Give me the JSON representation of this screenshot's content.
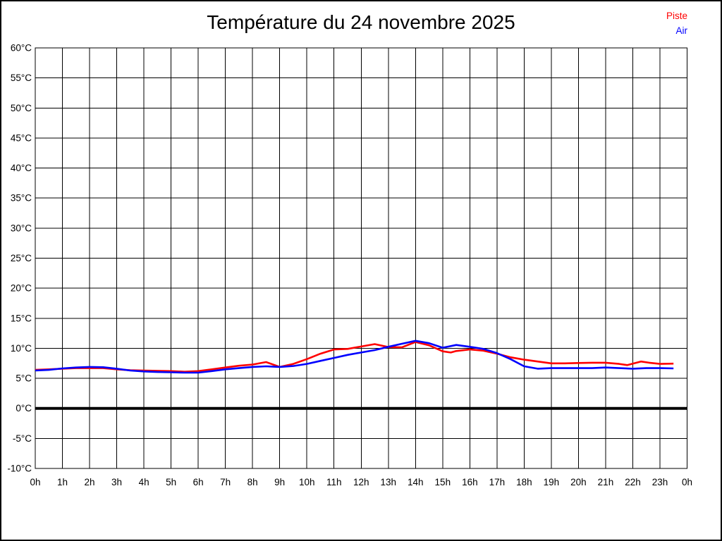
{
  "title": "Température du 24 novembre 2025",
  "legend": {
    "position": "top-right",
    "items": [
      {
        "label": "Piste",
        "color": "#ff0000"
      },
      {
        "label": "Air",
        "color": "#0000ff"
      }
    ]
  },
  "chart_data": {
    "type": "line",
    "title": "Température du 24 novembre 2025",
    "xlabel": "",
    "ylabel": "",
    "x_unit": "hour",
    "y_unit": "°C",
    "x_range_hours": [
      0,
      24
    ],
    "y_range_celsius": [
      -10,
      60
    ],
    "y_step": 5,
    "grid": true,
    "grid_color": "#000000",
    "frame_color": "#000000",
    "background_color": "#ffffff",
    "zero_line": {
      "value": 0,
      "color": "#000000",
      "thick": true
    },
    "x_tick_labels": [
      "0h",
      "1h",
      "2h",
      "3h",
      "4h",
      "5h",
      "6h",
      "7h",
      "8h",
      "9h",
      "10h",
      "11h",
      "12h",
      "13h",
      "14h",
      "15h",
      "16h",
      "17h",
      "18h",
      "19h",
      "20h",
      "21h",
      "22h",
      "23h",
      "0h"
    ],
    "y_tick_labels": [
      "60°C",
      "55°C",
      "50°C",
      "45°C",
      "40°C",
      "35°C",
      "30°C",
      "25°C",
      "20°C",
      "15°C",
      "10°C",
      "5°C",
      "0°C",
      "-5°C",
      "-10°C"
    ],
    "series": [
      {
        "name": "Piste",
        "color": "#ff0000",
        "points": [
          [
            0,
            6.4
          ],
          [
            0.5,
            6.5
          ],
          [
            1,
            6.6
          ],
          [
            1.5,
            6.7
          ],
          [
            2,
            6.7
          ],
          [
            2.5,
            6.7
          ],
          [
            3,
            6.5
          ],
          [
            3.5,
            6.35
          ],
          [
            4,
            6.3
          ],
          [
            4.5,
            6.25
          ],
          [
            5,
            6.2
          ],
          [
            5.5,
            6.1
          ],
          [
            6,
            6.2
          ],
          [
            6.5,
            6.5
          ],
          [
            7,
            6.8
          ],
          [
            7.5,
            7.1
          ],
          [
            8,
            7.3
          ],
          [
            8.5,
            7.7
          ],
          [
            9,
            6.9
          ],
          [
            9.5,
            7.4
          ],
          [
            10,
            8.2
          ],
          [
            10.5,
            9.1
          ],
          [
            11,
            9.8
          ],
          [
            11.5,
            9.9
          ],
          [
            12,
            10.3
          ],
          [
            12.5,
            10.7
          ],
          [
            13,
            10.2
          ],
          [
            13.5,
            10.15
          ],
          [
            14,
            11.05
          ],
          [
            14.5,
            10.5
          ],
          [
            15,
            9.5
          ],
          [
            15.3,
            9.3
          ],
          [
            15.5,
            9.55
          ],
          [
            16,
            9.8
          ],
          [
            16.5,
            9.6
          ],
          [
            17,
            9.1
          ],
          [
            17.5,
            8.5
          ],
          [
            18,
            8.1
          ],
          [
            18.5,
            7.8
          ],
          [
            19,
            7.5
          ],
          [
            19.5,
            7.5
          ],
          [
            20,
            7.55
          ],
          [
            20.5,
            7.6
          ],
          [
            21,
            7.6
          ],
          [
            21.5,
            7.4
          ],
          [
            21.8,
            7.2
          ],
          [
            22.3,
            7.8
          ],
          [
            22.6,
            7.6
          ],
          [
            23,
            7.4
          ],
          [
            23.5,
            7.45
          ]
        ]
      },
      {
        "name": "Air",
        "color": "#0000ff",
        "points": [
          [
            0,
            6.3
          ],
          [
            0.5,
            6.4
          ],
          [
            1,
            6.65
          ],
          [
            1.5,
            6.8
          ],
          [
            2,
            6.9
          ],
          [
            2.5,
            6.85
          ],
          [
            3,
            6.6
          ],
          [
            3.5,
            6.3
          ],
          [
            4,
            6.15
          ],
          [
            4.5,
            6.05
          ],
          [
            5,
            6.0
          ],
          [
            5.5,
            5.95
          ],
          [
            6,
            5.95
          ],
          [
            6.5,
            6.2
          ],
          [
            7,
            6.5
          ],
          [
            7.5,
            6.7
          ],
          [
            8,
            6.9
          ],
          [
            8.5,
            7.0
          ],
          [
            9,
            6.9
          ],
          [
            9.5,
            7.05
          ],
          [
            10,
            7.4
          ],
          [
            10.5,
            7.9
          ],
          [
            11,
            8.4
          ],
          [
            11.5,
            8.9
          ],
          [
            12,
            9.3
          ],
          [
            12.5,
            9.7
          ],
          [
            13,
            10.25
          ],
          [
            13.5,
            10.75
          ],
          [
            14,
            11.25
          ],
          [
            14.5,
            10.85
          ],
          [
            15,
            10.1
          ],
          [
            15.5,
            10.55
          ],
          [
            16,
            10.25
          ],
          [
            16.5,
            9.9
          ],
          [
            17,
            9.2
          ],
          [
            17.5,
            8.2
          ],
          [
            18,
            7.0
          ],
          [
            18.5,
            6.6
          ],
          [
            19,
            6.7
          ],
          [
            19.5,
            6.7
          ],
          [
            20,
            6.7
          ],
          [
            20.5,
            6.7
          ],
          [
            21,
            6.8
          ],
          [
            21.5,
            6.7
          ],
          [
            22,
            6.6
          ],
          [
            22.5,
            6.7
          ],
          [
            23,
            6.7
          ],
          [
            23.5,
            6.65
          ]
        ]
      }
    ]
  }
}
